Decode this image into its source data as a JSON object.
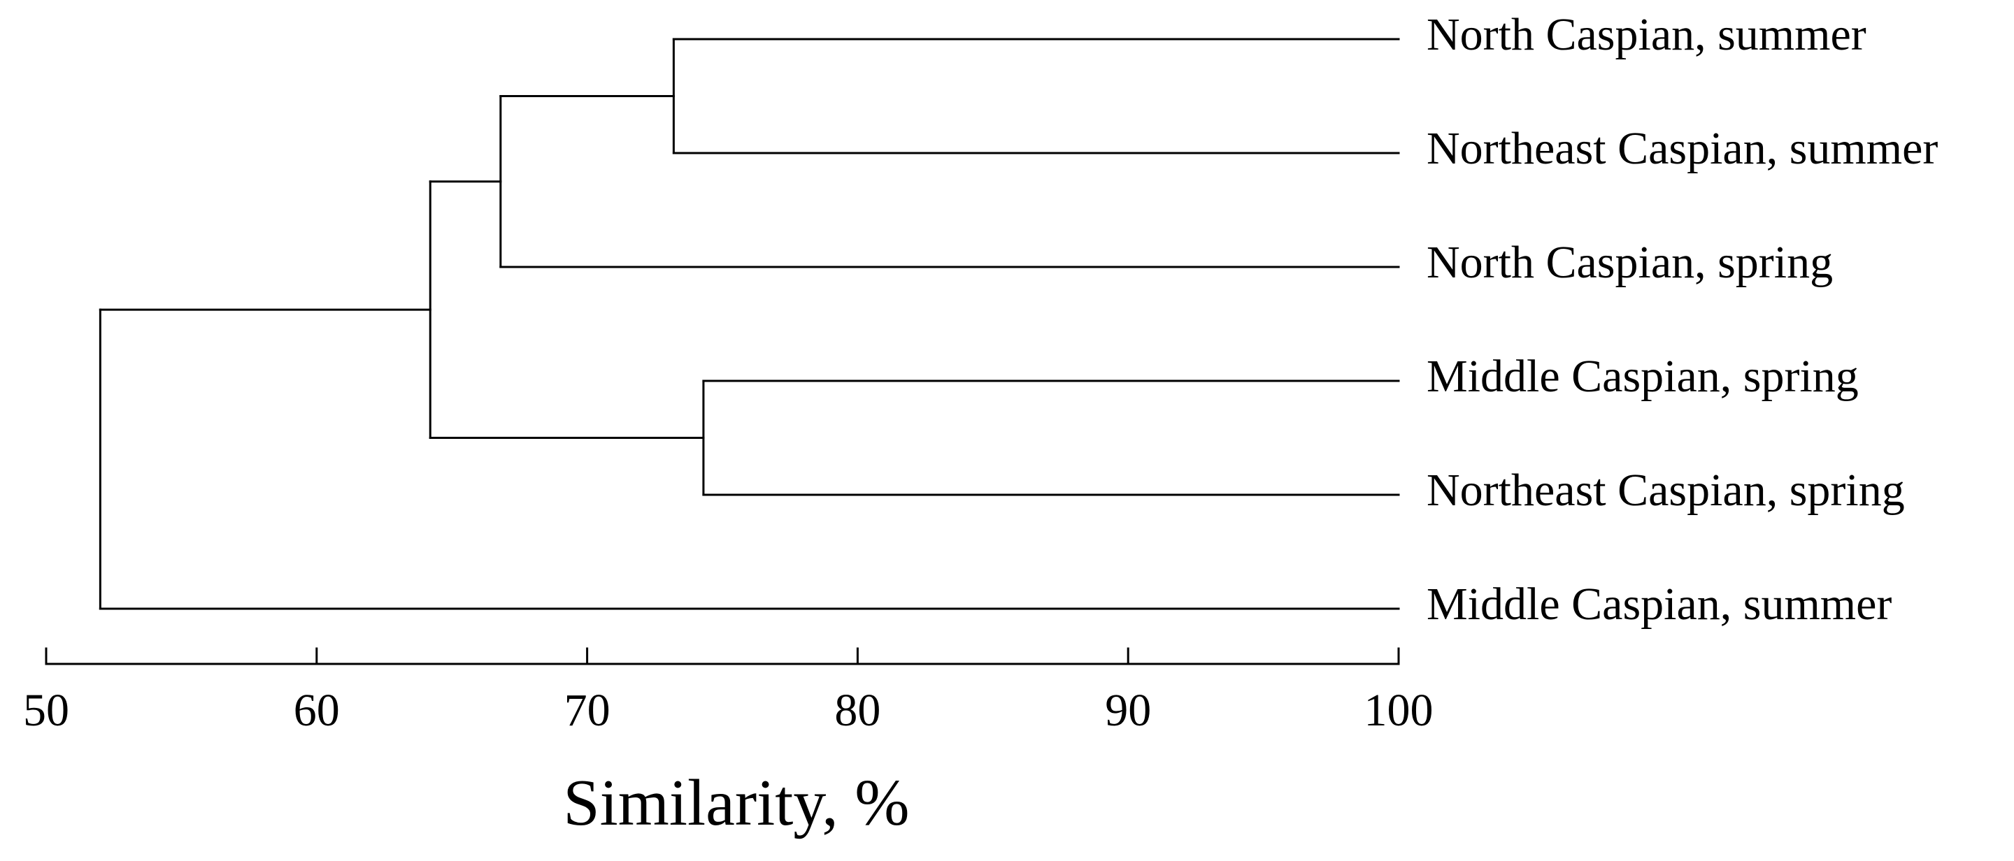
{
  "chart_data": {
    "type": "dendrogram",
    "title": "",
    "xlabel": "Similarity, %",
    "ylabel": "",
    "xlim": [
      50,
      100
    ],
    "x_ticks": [
      50,
      60,
      70,
      80,
      90,
      100
    ],
    "grid": false,
    "leaves": [
      "North Caspian, summer",
      "Northeast Caspian, summer",
      "North Caspian, spring",
      "Middle Caspian, spring",
      "Northeast Caspian, spring",
      "Middle Caspian, summer"
    ],
    "merges": [
      {
        "id": "c1",
        "children": [
          "North Caspian, summer",
          "Northeast Caspian, summer"
        ],
        "similarity": 73.2
      },
      {
        "id": "c2",
        "children": [
          "c1",
          "North Caspian, spring"
        ],
        "similarity": 66.8
      },
      {
        "id": "c3",
        "children": [
          "Middle Caspian, spring",
          "Northeast Caspian, spring"
        ],
        "similarity": 74.3
      },
      {
        "id": "c4",
        "children": [
          "c2",
          "c3"
        ],
        "similarity": 64.2
      },
      {
        "id": "c5",
        "children": [
          "c4",
          "Middle Caspian, summer"
        ],
        "similarity": 52.0
      }
    ],
    "line_color": "#000000"
  }
}
